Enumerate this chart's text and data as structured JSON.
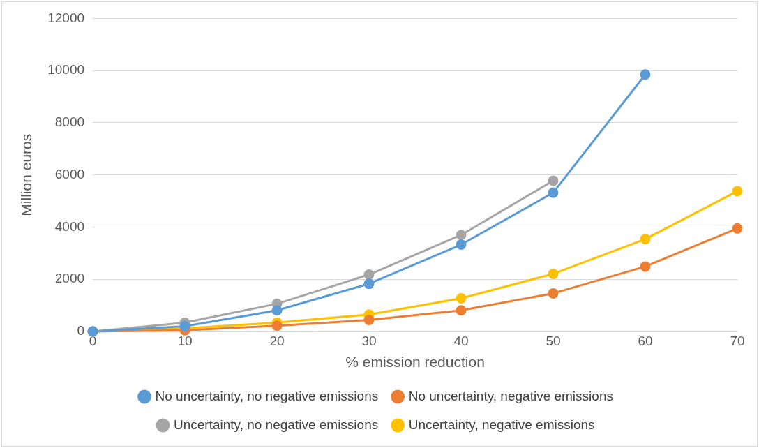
{
  "chart_data": {
    "type": "line",
    "xlabel": "% emission reduction",
    "ylabel": "Million euros",
    "x": [
      0,
      10,
      20,
      30,
      40,
      50,
      60,
      70
    ],
    "xlim": [
      0,
      70
    ],
    "xticks": [
      0,
      10,
      20,
      30,
      40,
      50,
      60,
      70
    ],
    "ylim": [
      0,
      12000
    ],
    "yticks": [
      0,
      2000,
      4000,
      6000,
      8000,
      10000,
      12000
    ],
    "grid": "y",
    "legend": "bottom",
    "marker": "circle",
    "line_style": "solid",
    "series": [
      {
        "name": "No uncertainty, no negative emissions",
        "color": "#5b9bd5",
        "values": [
          0,
          200,
          810,
          1830,
          3330,
          5320,
          9850,
          null
        ]
      },
      {
        "name": "No uncertainty, negative emissions",
        "color": "#ed7d31",
        "values": [
          0,
          50,
          220,
          440,
          810,
          1460,
          2490,
          3950
        ]
      },
      {
        "name": "Uncertainty, no negative emissions",
        "color": "#a5a5a5",
        "values": [
          0,
          340,
          1060,
          2180,
          3700,
          5780,
          null,
          null
        ]
      },
      {
        "name": "Uncertainty, negative emissions",
        "color": "#ffc000",
        "values": [
          0,
          120,
          340,
          650,
          1270,
          2210,
          3540,
          5380
        ]
      }
    ]
  }
}
